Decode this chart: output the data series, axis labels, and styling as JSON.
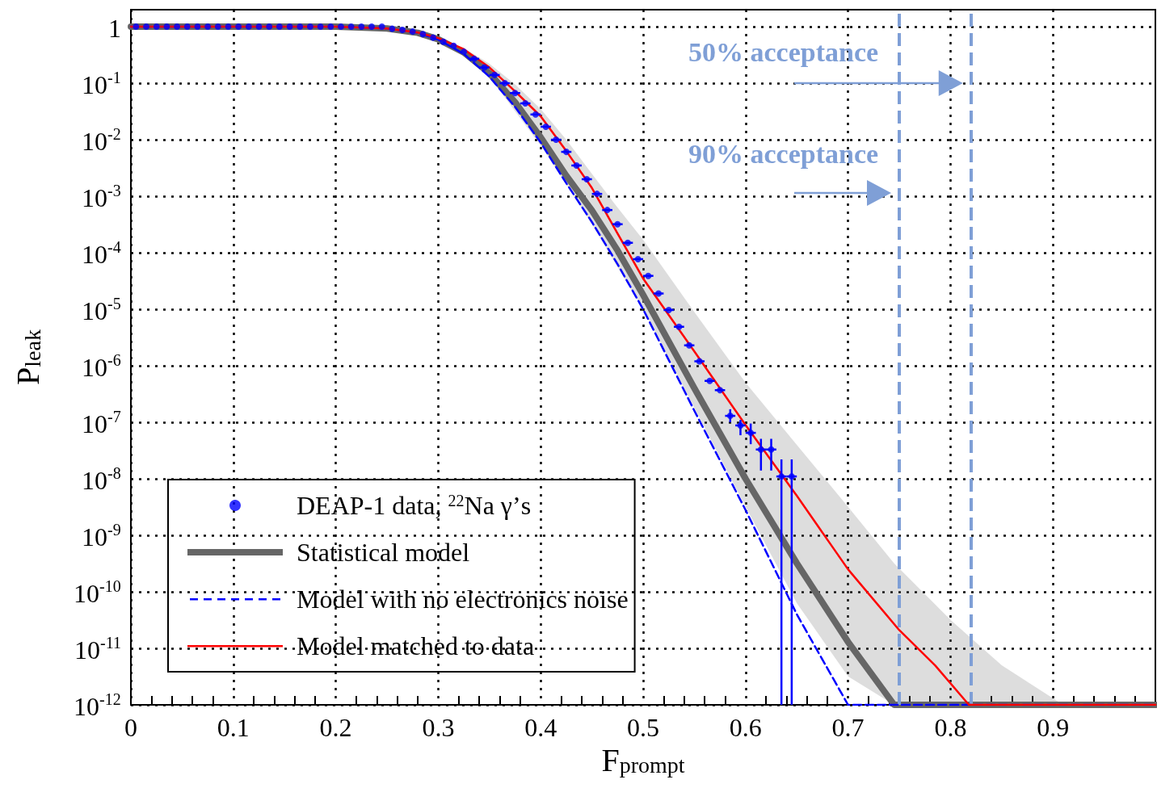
{
  "chart_data": {
    "type": "line",
    "xlabel": "F$_{prompt}$",
    "ylabel": "P$_{leak}$",
    "log": "y",
    "grid": true,
    "legend": "bottom left",
    "xlim": [
      0,
      1
    ],
    "xticks": [
      0,
      0.1,
      0.2,
      0.3,
      0.4,
      0.5,
      0.6,
      0.7,
      0.8,
      0.9
    ],
    "ylim": [
      1e-12,
      2
    ],
    "yticks": [
      {
        "value": 1e-12,
        "label": "10$^{-12}$"
      },
      {
        "value": 1e-11,
        "label": "10$^{-11}$"
      },
      {
        "value": 1e-10,
        "label": "10$^{-10}$"
      },
      {
        "value": 1e-09,
        "label": "10$^{-9}$"
      },
      {
        "value": 1e-08,
        "label": "10$^{-8}$"
      },
      {
        "value": 1e-07,
        "label": "10$^{-7}$"
      },
      {
        "value": 1e-06,
        "label": "10$^{-6}$"
      },
      {
        "value": 1e-05,
        "label": "10$^{-5}$"
      },
      {
        "value": 0.0001,
        "label": "10$^{-4}$"
      },
      {
        "value": 0.001,
        "label": "10$^{-3}$"
      },
      {
        "value": 0.01,
        "label": "10$^{-2}$"
      },
      {
        "value": 0.1,
        "label": "10$^{-1}$"
      },
      1
    ],
    "series": [
      {
        "name": "DEAP-1 data, $^{22}$Na γ’s",
        "type": "scatter",
        "marker": "circle",
        "color": "#0000ff",
        "x": [
          0.005,
          0.015,
          0.025,
          0.035,
          0.045,
          0.055,
          0.065,
          0.075,
          0.085,
          0.095,
          0.105,
          0.115,
          0.125,
          0.135,
          0.145,
          0.155,
          0.165,
          0.175,
          0.185,
          0.195,
          0.205,
          0.215,
          0.225,
          0.235,
          0.245,
          0.255,
          0.265,
          0.275,
          0.285,
          0.295,
          0.305,
          0.315,
          0.325,
          0.335,
          0.345,
          0.355,
          0.365,
          0.375,
          0.385,
          0.395,
          0.405,
          0.415,
          0.425,
          0.435,
          0.445,
          0.455,
          0.465,
          0.475,
          0.485,
          0.495,
          0.505,
          0.515,
          0.525,
          0.535,
          0.545,
          0.555,
          0.565,
          0.575,
          0.585,
          0.595,
          0.605,
          0.615,
          0.625,
          0.635,
          0.645
        ],
        "values": [
          1,
          1,
          1,
          1,
          1,
          1,
          1,
          1,
          1,
          1,
          1,
          1,
          1,
          1,
          1,
          1,
          1,
          1,
          1,
          1,
          1,
          1,
          1,
          1,
          1,
          0.92,
          0.88,
          0.82,
          0.74,
          0.64,
          0.54,
          0.46,
          0.36,
          0.27,
          0.19,
          0.14,
          0.1,
          0.067,
          0.044,
          0.028,
          0.017,
          0.01,
          0.0061,
          0.0035,
          0.002,
          0.0011,
          0.00057,
          0.00032,
          0.00015,
          7.7e-05,
          3.9e-05,
          1.9e-05,
          9.7e-06,
          4.9e-06,
          2.3e-06,
          1.2e-06,
          5.4e-07,
          3.7e-07,
          1.3e-07,
          8.8e-08,
          6.5e-08,
          3.3e-08,
          3.3e-08,
          1.1e-08,
          1.1e-08
        ],
        "errors": [
          null,
          null,
          null,
          null,
          null,
          null,
          null,
          null,
          null,
          null,
          null,
          null,
          null,
          null,
          null,
          null,
          null,
          null,
          null,
          null,
          null,
          null,
          null,
          null,
          null,
          null,
          null,
          null,
          null,
          null,
          null,
          null,
          null,
          null,
          null,
          null,
          null,
          null,
          null,
          null,
          null,
          null,
          null,
          null,
          null,
          null,
          null,
          null,
          null,
          null,
          null,
          null,
          null,
          null,
          null,
          null,
          null,
          null,
          [
            1e-07,
            1.7e-07
          ],
          [
            5.9e-08,
            1.1e-07
          ],
          [
            4.1e-08,
            9.5e-08
          ],
          [
            1.4e-08,
            5.1e-08
          ],
          [
            1.4e-08,
            5.1e-08
          ],
          [
            1e-12,
            2.2e-08
          ],
          [
            1e-12,
            2.2e-08
          ]
        ],
        "xerrors": [
          null,
          null,
          null,
          null,
          null,
          null,
          null,
          null,
          null,
          null,
          null,
          null,
          null,
          null,
          null,
          null,
          null,
          null,
          null,
          null,
          null,
          null,
          null,
          null,
          null,
          null,
          null,
          null,
          null,
          null,
          null,
          null,
          null,
          0.005,
          0.005,
          0.005,
          0.005,
          0.005,
          0.005,
          0.005,
          0.005,
          0.005,
          0.005,
          0.005,
          0.005,
          0.005,
          0.005,
          0.005,
          0.005,
          0.005,
          0.005,
          0.005,
          0.005,
          0.005,
          0.005,
          0.005,
          0.005,
          0.005,
          0.005,
          0.005,
          0.005,
          0.005,
          0.005,
          0.005,
          0.005
        ]
      },
      {
        "name": "Statistical model",
        "marker": "none",
        "color": "#666666",
        "x": [
          0,
          0.2,
          0.25,
          0.28,
          0.3,
          0.325,
          0.35,
          0.375,
          0.4,
          0.425,
          0.45,
          0.475,
          0.5,
          0.55,
          0.6,
          0.65,
          0.7,
          0.745,
          0.8,
          0.85,
          0.91,
          1
        ],
        "values": [
          1,
          1,
          0.93,
          0.78,
          0.6,
          0.35,
          0.15,
          0.046,
          0.011,
          0.0023,
          0.00056,
          0.00011,
          1.8e-05,
          4e-07,
          1e-08,
          3.2e-10,
          1.3e-11,
          1e-12,
          1e-12,
          1e-12,
          1e-12,
          1e-12
        ],
        "upper": [
          1,
          1,
          0.93,
          0.79,
          0.66,
          0.42,
          0.22,
          0.095,
          0.035,
          0.01,
          0.0025,
          0.00063,
          0.00017,
          8.9e-06,
          5e-07,
          4e-08,
          3.2e-09,
          3.2e-10,
          3.2e-11,
          5e-12,
          1e-12,
          1e-12
        ],
        "lower": [
          1,
          1,
          0.93,
          0.76,
          0.56,
          0.3,
          0.13,
          0.032,
          0.0079,
          0.0016,
          0.00032,
          5.6e-05,
          1e-05,
          1.8e-07,
          3.2e-09,
          6.3e-11,
          3.2e-12,
          1e-12,
          1e-12,
          1e-12,
          1e-12,
          1e-12
        ]
      },
      {
        "name": "Model with no electronics noise",
        "marker": "none",
        "line_style": "dashed",
        "color": "#0000ff",
        "x": [
          0,
          0.2,
          0.25,
          0.28,
          0.3,
          0.325,
          0.35,
          0.375,
          0.4,
          0.425,
          0.45,
          0.475,
          0.5,
          0.55,
          0.6,
          0.65,
          0.7,
          1
        ],
        "values": [
          1,
          1,
          0.93,
          0.78,
          0.59,
          0.33,
          0.13,
          0.038,
          0.0089,
          0.0017,
          0.00035,
          6.3e-05,
          1e-05,
          1.6e-07,
          2.8e-09,
          4e-11,
          1e-12,
          1e-12
        ]
      },
      {
        "name": "Model matched to data",
        "marker": "none",
        "line_style": "solid",
        "color": "#ff0000",
        "x": [
          0,
          0.2,
          0.25,
          0.28,
          0.3,
          0.325,
          0.35,
          0.375,
          0.4,
          0.425,
          0.45,
          0.475,
          0.5,
          0.55,
          0.6,
          0.65,
          0.7,
          0.75,
          0.785,
          0.818,
          1
        ],
        "values": [
          1,
          1,
          0.93,
          0.79,
          0.63,
          0.4,
          0.19,
          0.072,
          0.026,
          0.0063,
          0.0014,
          0.00022,
          3.5e-05,
          1.8e-06,
          8.9e-08,
          5e-09,
          2.5e-10,
          2.1e-11,
          5e-12,
          1e-12,
          1e-12
        ]
      }
    ],
    "ref_lines": [
      {
        "axis": "x",
        "value": 0.82,
        "label": "50% acceptance",
        "color": "#7f9fd6",
        "line_style": "dashed"
      },
      {
        "axis": "x",
        "value": 0.75,
        "label": "90% acceptance",
        "color": "#7f9fd6",
        "line_style": "dashed"
      }
    ]
  }
}
